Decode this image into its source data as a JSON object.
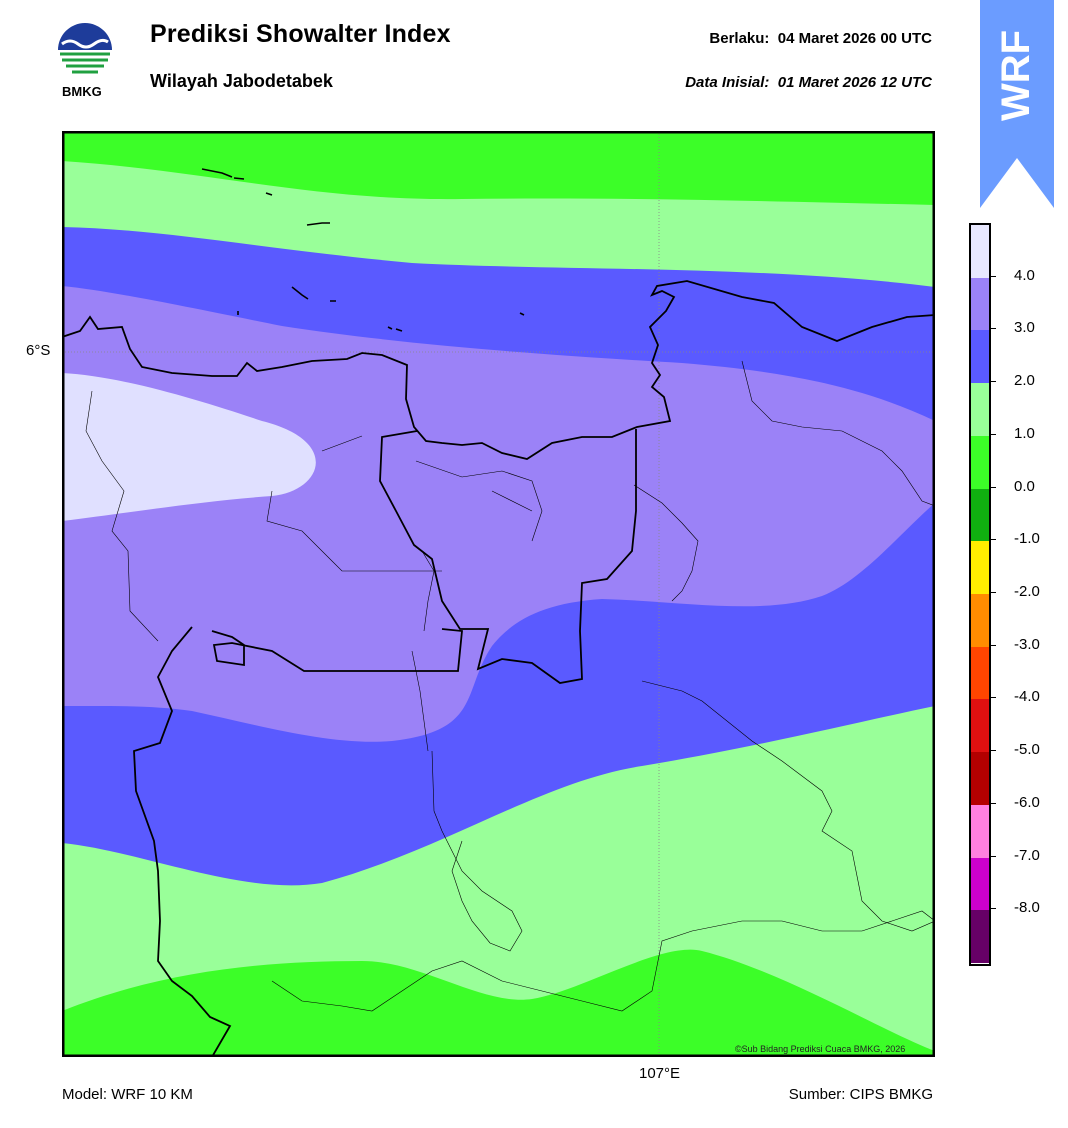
{
  "header": {
    "title": "Prediksi Showalter Index",
    "subtitle": "Wilayah Jabodetabek",
    "valid_time": "Berlaku:  04 Maret 2026 00 UTC",
    "init_time": "Data Inisial:  01 Maret 2026 12 UTC",
    "logo_text": "BMKG",
    "badge_text": "WRF"
  },
  "map": {
    "lat_label": "6°S",
    "lon_label": "107°E",
    "credit": "©Sub Bidang Prediksi Cuaca BMKG, 2026"
  },
  "footer": {
    "model": "Model: WRF 10 KM",
    "source": "Sumber: CIPS BMKG"
  },
  "colorbar": {
    "labels": [
      "4.0",
      "3.0",
      "2.0",
      "1.0",
      "0.0",
      "-1.0",
      "-2.0",
      "-3.0",
      "-4.0",
      "-5.0",
      "-6.0",
      "-7.0",
      "-8.0"
    ],
    "colors": [
      "#e8e8ff",
      "#9b82f7",
      "#5a5aff",
      "#99ff99",
      "#3cfe28",
      "#10b010",
      "#ffee00",
      "#ff8c00",
      "#ff4500",
      "#e01010",
      "#b30000",
      "#ff80e0",
      "#cc00cc",
      "#660066"
    ]
  },
  "colors": {
    "badge": "#6b9cff",
    "contour_1": "#3cfe28",
    "contour_2": "#99ff99",
    "contour_3": "#5a5aff",
    "contour_4": "#9b82f7",
    "contour_5": "#e0e0ff"
  }
}
